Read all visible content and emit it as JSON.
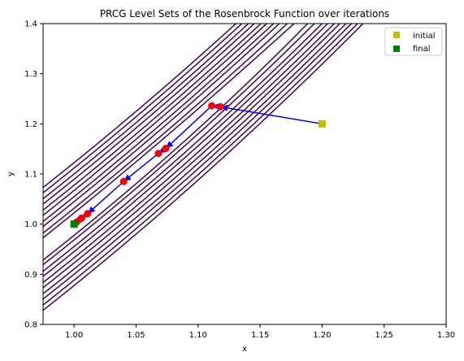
{
  "chart_data": {
    "type": "line",
    "title": "PRCG Level Sets of the Rosenbrock Function over iterations",
    "xlabel": "x",
    "ylabel": "y",
    "xlim": [
      0.975,
      1.3
    ],
    "ylim": [
      0.8,
      1.4
    ],
    "xticks": [
      1.0,
      1.05,
      1.1,
      1.15,
      1.2,
      1.25,
      1.3
    ],
    "yticks": [
      0.8,
      0.9,
      1.0,
      1.1,
      1.2,
      1.3,
      1.4
    ],
    "xtick_labels": [
      "1.00",
      "1.05",
      "1.10",
      "1.15",
      "1.20",
      "1.25",
      "1.30"
    ],
    "ytick_labels": [
      "0.8",
      "0.9",
      "1.0",
      "1.1",
      "1.2",
      "1.3",
      "1.4"
    ],
    "grid": false,
    "legend_placement": "top-right",
    "contour_levels": [
      0.05,
      0.1,
      0.2,
      0.3,
      0.45,
      0.6,
      0.8,
      1.0,
      1.25,
      1.5
    ],
    "contour_color": "#440154",
    "path_color": "#0000ff",
    "iterate_color": "#ff0000",
    "path": {
      "x": [
        1.2,
        1.118,
        1.111,
        1.074,
        1.068,
        1.04,
        1.011,
        1.006,
        1.002,
        1.0
      ],
      "y": [
        1.2,
        1.234,
        1.236,
        1.151,
        1.141,
        1.085,
        1.021,
        1.012,
        1.004,
        1.0
      ]
    },
    "legend": [
      {
        "label": "initial",
        "color": "#bfbf00",
        "x": 1.2,
        "y": 1.2
      },
      {
        "label": "final",
        "color": "#008000",
        "x": 1.0,
        "y": 1.0
      }
    ]
  }
}
